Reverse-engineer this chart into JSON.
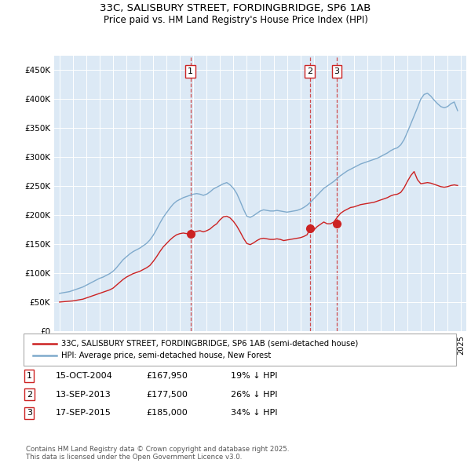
{
  "title1": "33C, SALISBURY STREET, FORDINGBRIDGE, SP6 1AB",
  "title2": "Price paid vs. HM Land Registry's House Price Index (HPI)",
  "ylabel_ticks": [
    "£0",
    "£50K",
    "£100K",
    "£150K",
    "£200K",
    "£250K",
    "£300K",
    "£350K",
    "£400K",
    "£450K"
  ],
  "ytick_values": [
    0,
    50000,
    100000,
    150000,
    200000,
    250000,
    300000,
    350000,
    400000,
    450000
  ],
  "ylim": [
    0,
    475000
  ],
  "xlim_start": 1994.6,
  "xlim_end": 2025.4,
  "background_color": "#dce9f5",
  "plot_bg_color": "#dce9f5",
  "grid_color": "#ffffff",
  "hpi_color": "#7faacc",
  "price_color": "#cc2222",
  "sale_marker_color": "#cc2222",
  "vline_color": "#cc3333",
  "sale_dates": [
    2004.79,
    2013.71,
    2015.71
  ],
  "sale_prices": [
    167950,
    177500,
    185000
  ],
  "sale_labels": [
    "1",
    "2",
    "3"
  ],
  "legend_label_red": "33C, SALISBURY STREET, FORDINGBRIDGE, SP6 1AB (semi-detached house)",
  "legend_label_blue": "HPI: Average price, semi-detached house, New Forest",
  "table_data": [
    [
      "1",
      "15-OCT-2004",
      "£167,950",
      "19% ↓ HPI"
    ],
    [
      "2",
      "13-SEP-2013",
      "£177,500",
      "26% ↓ HPI"
    ],
    [
      "3",
      "17-SEP-2015",
      "£185,000",
      "34% ↓ HPI"
    ]
  ],
  "footer_text": "Contains HM Land Registry data © Crown copyright and database right 2025.\nThis data is licensed under the Open Government Licence v3.0.",
  "hpi_data_years": [
    1995.0,
    1995.25,
    1995.5,
    1995.75,
    1996.0,
    1996.25,
    1996.5,
    1996.75,
    1997.0,
    1997.25,
    1997.5,
    1997.75,
    1998.0,
    1998.25,
    1998.5,
    1998.75,
    1999.0,
    1999.25,
    1999.5,
    1999.75,
    2000.0,
    2000.25,
    2000.5,
    2000.75,
    2001.0,
    2001.25,
    2001.5,
    2001.75,
    2002.0,
    2002.25,
    2002.5,
    2002.75,
    2003.0,
    2003.25,
    2003.5,
    2003.75,
    2004.0,
    2004.25,
    2004.5,
    2004.75,
    2005.0,
    2005.25,
    2005.5,
    2005.75,
    2006.0,
    2006.25,
    2006.5,
    2006.75,
    2007.0,
    2007.25,
    2007.5,
    2007.75,
    2008.0,
    2008.25,
    2008.5,
    2008.75,
    2009.0,
    2009.25,
    2009.5,
    2009.75,
    2010.0,
    2010.25,
    2010.5,
    2010.75,
    2011.0,
    2011.25,
    2011.5,
    2011.75,
    2012.0,
    2012.25,
    2012.5,
    2012.75,
    2013.0,
    2013.25,
    2013.5,
    2013.75,
    2014.0,
    2014.25,
    2014.5,
    2014.75,
    2015.0,
    2015.25,
    2015.5,
    2015.75,
    2016.0,
    2016.25,
    2016.5,
    2016.75,
    2017.0,
    2017.25,
    2017.5,
    2017.75,
    2018.0,
    2018.25,
    2018.5,
    2018.75,
    2019.0,
    2019.25,
    2019.5,
    2019.75,
    2020.0,
    2020.25,
    2020.5,
    2020.75,
    2021.0,
    2021.25,
    2021.5,
    2021.75,
    2022.0,
    2022.25,
    2022.5,
    2022.75,
    2023.0,
    2023.25,
    2023.5,
    2023.75,
    2024.0,
    2024.25,
    2024.5,
    2024.75
  ],
  "hpi_data_values": [
    65000,
    66000,
    67000,
    68000,
    70000,
    72000,
    74000,
    76000,
    79000,
    82000,
    85000,
    88000,
    91000,
    93000,
    96000,
    99000,
    103000,
    109000,
    116000,
    123000,
    128000,
    133000,
    137000,
    140000,
    143000,
    147000,
    151000,
    157000,
    165000,
    175000,
    186000,
    196000,
    204000,
    212000,
    219000,
    224000,
    227000,
    230000,
    232000,
    234000,
    236000,
    237000,
    236000,
    234000,
    236000,
    240000,
    245000,
    248000,
    251000,
    254000,
    256000,
    252000,
    246000,
    237000,
    224000,
    210000,
    198000,
    196000,
    199000,
    203000,
    207000,
    209000,
    208000,
    207000,
    207000,
    208000,
    207000,
    206000,
    205000,
    206000,
    207000,
    208000,
    210000,
    213000,
    217000,
    222000,
    228000,
    234000,
    240000,
    246000,
    250000,
    254000,
    258000,
    263000,
    268000,
    272000,
    276000,
    279000,
    282000,
    285000,
    288000,
    290000,
    292000,
    294000,
    296000,
    298000,
    301000,
    304000,
    307000,
    311000,
    314000,
    316000,
    321000,
    330000,
    343000,
    357000,
    371000,
    385000,
    400000,
    408000,
    410000,
    405000,
    398000,
    392000,
    387000,
    385000,
    387000,
    392000,
    395000,
    380000
  ],
  "price_data_years": [
    1995.0,
    1995.25,
    1995.5,
    1995.75,
    1996.0,
    1996.25,
    1996.5,
    1996.75,
    1997.0,
    1997.25,
    1997.5,
    1997.75,
    1998.0,
    1998.25,
    1998.5,
    1998.75,
    1999.0,
    1999.25,
    1999.5,
    1999.75,
    2000.0,
    2000.25,
    2000.5,
    2000.75,
    2001.0,
    2001.25,
    2001.5,
    2001.75,
    2002.0,
    2002.25,
    2002.5,
    2002.75,
    2003.0,
    2003.25,
    2003.5,
    2003.75,
    2004.0,
    2004.25,
    2004.5,
    2004.75,
    2005.0,
    2005.25,
    2005.5,
    2005.75,
    2006.0,
    2006.25,
    2006.5,
    2006.75,
    2007.0,
    2007.25,
    2007.5,
    2007.75,
    2008.0,
    2008.25,
    2008.5,
    2008.75,
    2009.0,
    2009.25,
    2009.5,
    2009.75,
    2010.0,
    2010.25,
    2010.5,
    2010.75,
    2011.0,
    2011.25,
    2011.5,
    2011.75,
    2012.0,
    2012.25,
    2012.5,
    2012.75,
    2013.0,
    2013.25,
    2013.5,
    2013.75,
    2014.0,
    2014.25,
    2014.5,
    2014.75,
    2015.0,
    2015.25,
    2015.5,
    2015.75,
    2016.0,
    2016.25,
    2016.5,
    2016.75,
    2017.0,
    2017.25,
    2017.5,
    2017.75,
    2018.0,
    2018.25,
    2018.5,
    2018.75,
    2019.0,
    2019.25,
    2019.5,
    2019.75,
    2020.0,
    2020.25,
    2020.5,
    2020.75,
    2021.0,
    2021.25,
    2021.5,
    2021.75,
    2022.0,
    2022.25,
    2022.5,
    2022.75,
    2023.0,
    2023.25,
    2023.5,
    2023.75,
    2024.0,
    2024.25,
    2024.5,
    2024.75
  ],
  "price_data_values": [
    50000,
    50500,
    51000,
    51500,
    52000,
    53000,
    54000,
    55000,
    57000,
    59000,
    61000,
    63000,
    65000,
    67000,
    69000,
    71000,
    74000,
    79000,
    84000,
    89000,
    93000,
    96000,
    99000,
    101000,
    103000,
    106000,
    109000,
    113000,
    120000,
    128000,
    137000,
    145000,
    151000,
    157000,
    162000,
    166000,
    168000,
    169000,
    168000,
    167950,
    170000,
    172000,
    173000,
    171000,
    173000,
    176000,
    181000,
    185000,
    192000,
    197000,
    198000,
    195000,
    189000,
    181000,
    171000,
    160000,
    151000,
    149000,
    152000,
    156000,
    159000,
    160000,
    159000,
    158000,
    158000,
    159000,
    158000,
    156000,
    157000,
    158000,
    159000,
    160000,
    161000,
    163000,
    166000,
    177500,
    174000,
    180000,
    184000,
    188000,
    185000,
    185000,
    188000,
    196000,
    203000,
    207000,
    210000,
    213000,
    214000,
    216000,
    218000,
    219000,
    220000,
    221000,
    222000,
    224000,
    226000,
    228000,
    230000,
    233000,
    235000,
    236000,
    239000,
    247000,
    258000,
    268000,
    275000,
    261000,
    254000,
    255000,
    256000,
    255000,
    253000,
    251000,
    249000,
    248000,
    249000,
    251000,
    252000,
    251000
  ]
}
